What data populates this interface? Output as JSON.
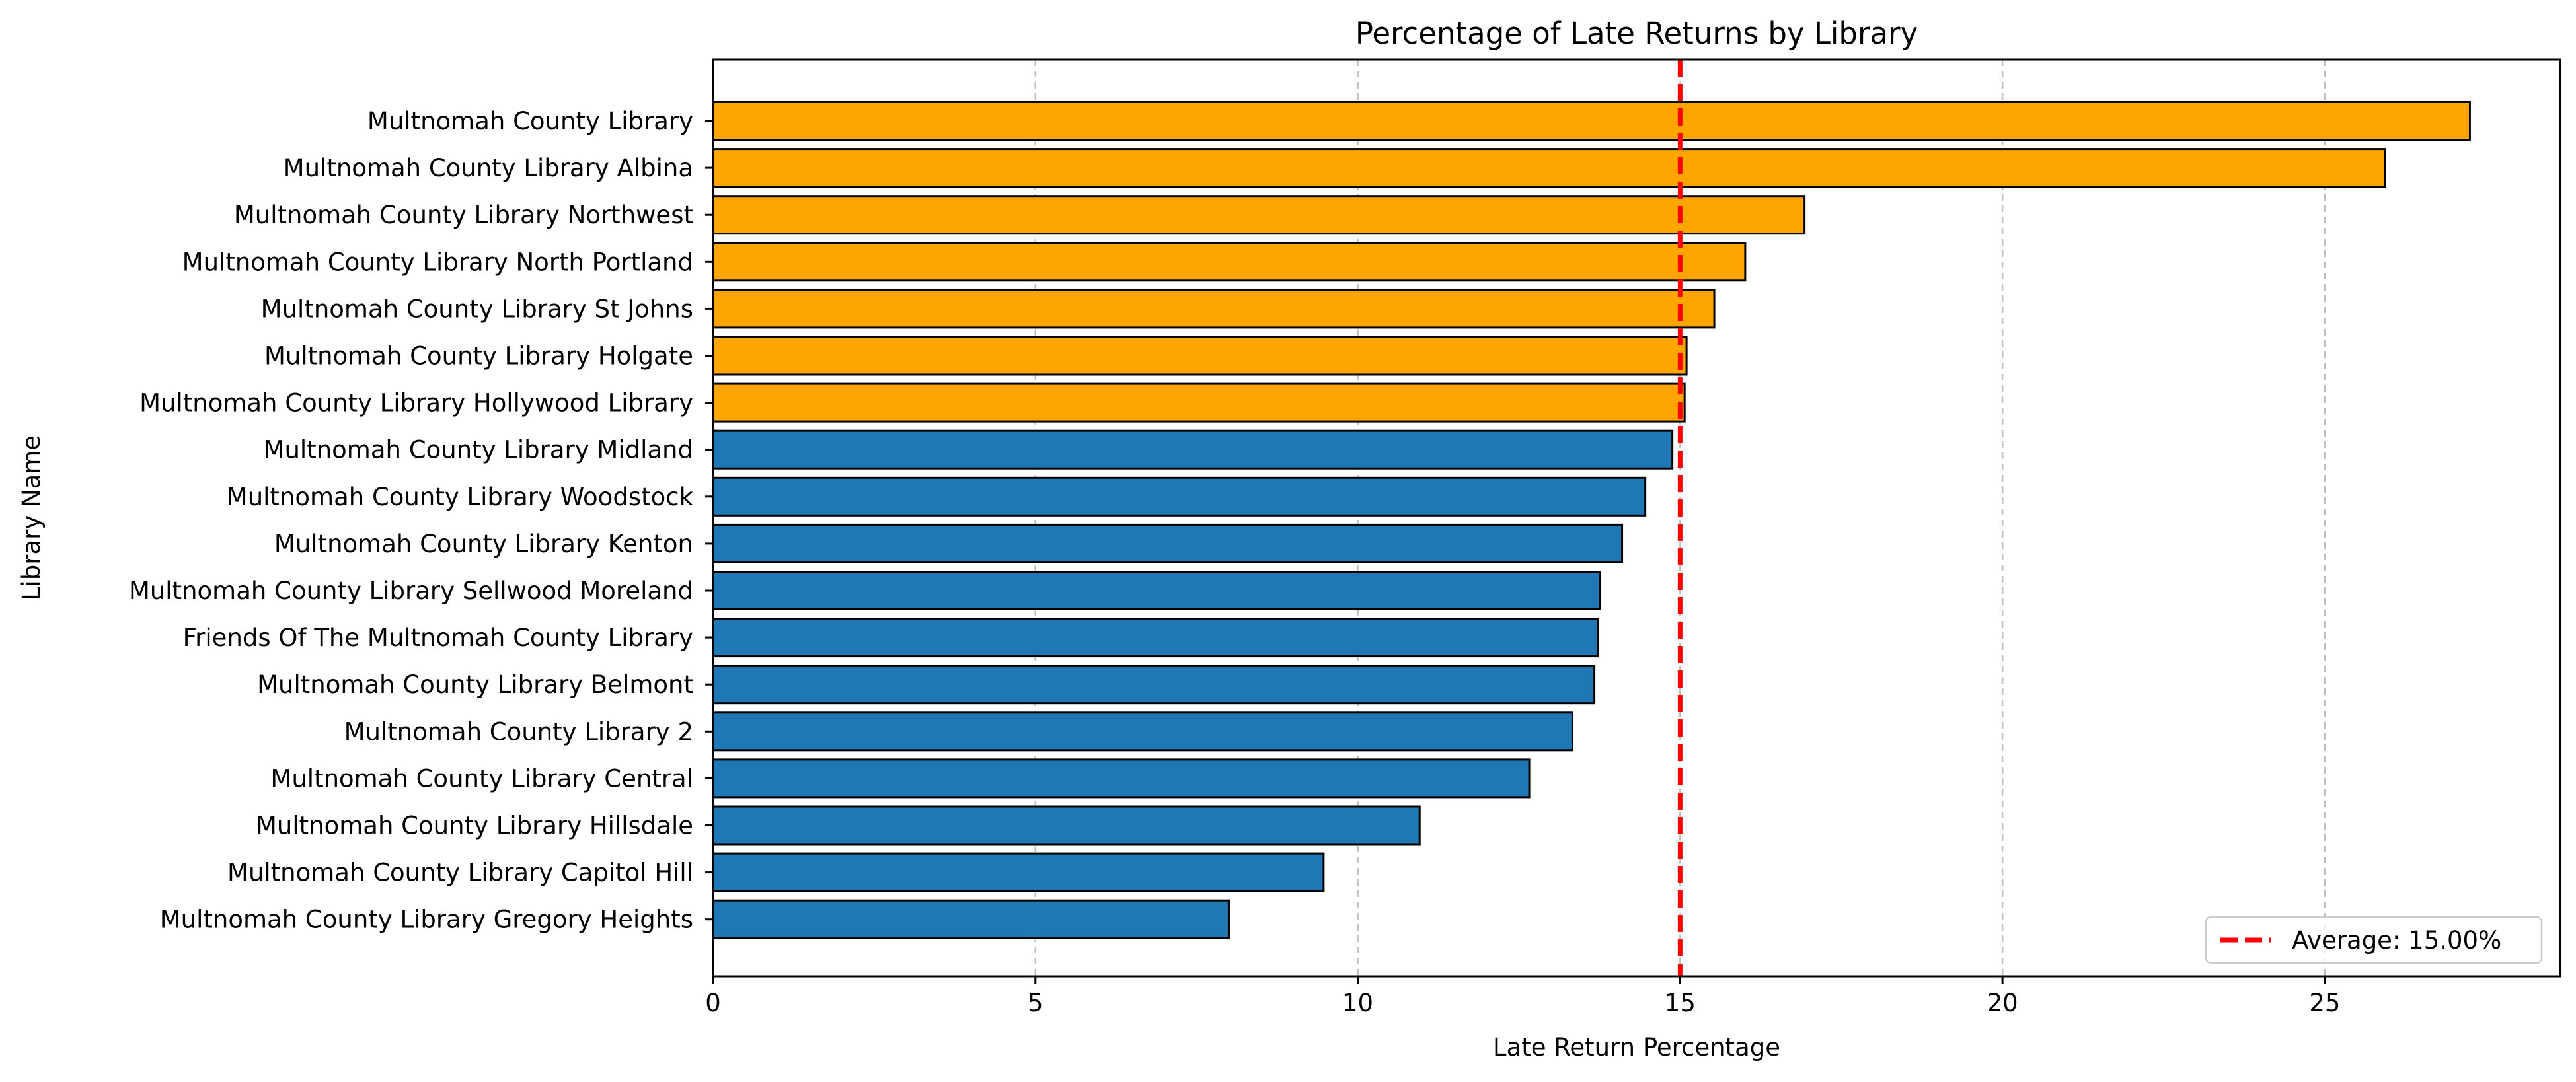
{
  "chart_data": {
    "type": "bar",
    "orientation": "horizontal",
    "title": "Percentage of Late Returns by Library",
    "xlabel": "Late Return Percentage",
    "ylabel": "Library Name",
    "xlim": [
      0,
      28.65
    ],
    "xticks": [
      0,
      5,
      10,
      15,
      20,
      25
    ],
    "grid": "x dashed",
    "legend_position": "lower-right",
    "colors": {
      "above_average": "#ffa500",
      "below_average": "#1f77b4",
      "bar_edge": "#000000",
      "average_line": "#ff0000"
    },
    "categories": [
      "Multnomah County Library",
      "Multnomah County Library Albina",
      "Multnomah County Library Northwest",
      "Multnomah County Library North Portland",
      "Multnomah County Library St Johns",
      "Multnomah County Library Holgate",
      "Multnomah County Library Hollywood Library",
      "Multnomah County Library Midland",
      "Multnomah County Library Woodstock",
      "Multnomah County Library Kenton",
      "Multnomah County Library Sellwood Moreland",
      "Friends Of The Multnomah County Library",
      "Multnomah County Library Belmont",
      "Multnomah County Library 2",
      "Multnomah County Library Central",
      "Multnomah County Library Hillsdale",
      "Multnomah County Library Capitol Hill",
      "Multnomah County Library Gregory Heights"
    ],
    "values": [
      27.25,
      25.93,
      16.93,
      16.01,
      15.53,
      15.1,
      15.07,
      14.88,
      14.46,
      14.1,
      13.76,
      13.72,
      13.67,
      13.33,
      12.66,
      10.96,
      9.47,
      8.0
    ],
    "average": 15.0,
    "legend": [
      "Average: 15.00%"
    ]
  }
}
